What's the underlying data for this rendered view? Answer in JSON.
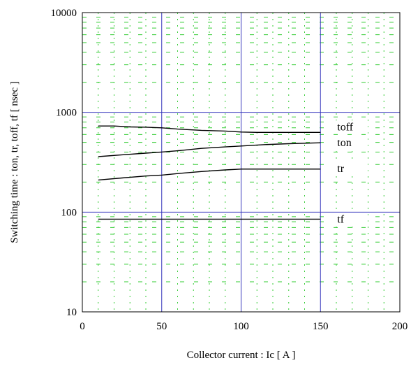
{
  "chart_data": {
    "type": "line",
    "title": "",
    "xlabel": "Collector current  :  Ic  [ A ]",
    "ylabel": "Switching time  :  ton, tr, toff, tf  [ nsec ]",
    "xlim": [
      0,
      200
    ],
    "ylim": [
      10,
      10000
    ],
    "y_scale": "log",
    "x_ticks": [
      0,
      50,
      100,
      150,
      200
    ],
    "y_ticks": [
      10,
      100,
      1000,
      10000
    ],
    "x_tick_labels": [
      "0",
      "50",
      "100",
      "150",
      "200"
    ],
    "y_tick_labels": [
      "10",
      "100",
      "1000",
      "10000"
    ],
    "grid": "major solid blue, minor dashed green",
    "legend": "labels at right end of each series",
    "colors": {
      "major_grid": "#3333bb",
      "minor_grid": "#33cc33",
      "series": "#000000"
    },
    "series": [
      {
        "name": "toff",
        "x": [
          10,
          20,
          30,
          40,
          50,
          60,
          75,
          90,
          100,
          110,
          125,
          150
        ],
        "y": [
          730,
          730,
          715,
          710,
          700,
          680,
          660,
          650,
          635,
          630,
          630,
          630
        ]
      },
      {
        "name": "ton",
        "x": [
          10,
          25,
          40,
          50,
          62,
          75,
          90,
          100,
          115,
          130,
          150
        ],
        "y": [
          360,
          375,
          390,
          400,
          415,
          435,
          450,
          460,
          475,
          485,
          495
        ]
      },
      {
        "name": "tr",
        "x": [
          10,
          25,
          40,
          50,
          62,
          75,
          90,
          100,
          110,
          125,
          150
        ],
        "y": [
          210,
          220,
          230,
          235,
          245,
          255,
          265,
          270,
          270,
          270,
          270
        ]
      },
      {
        "name": "tf",
        "x": [
          10,
          30,
          50,
          75,
          100,
          125,
          150
        ],
        "y": [
          85,
          85,
          85,
          85,
          85,
          85,
          85
        ]
      }
    ]
  }
}
